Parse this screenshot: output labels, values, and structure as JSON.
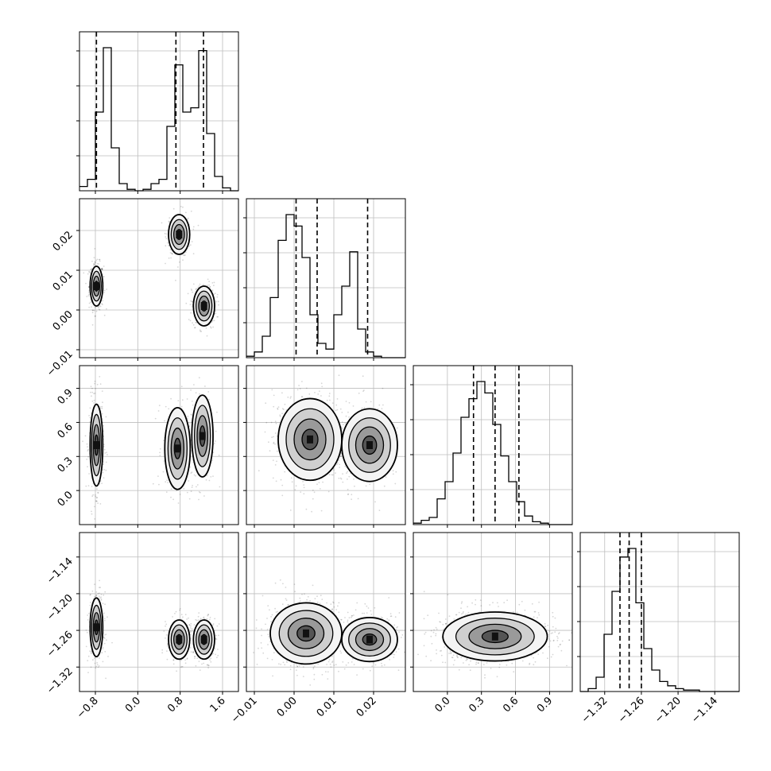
{
  "chart_data": {
    "type": "corner",
    "grid": true,
    "histogram": {
      "bins": 20,
      "style": "step",
      "color": "#000000",
      "quantile_line_style": "dashed"
    },
    "scatter_color": "#000000",
    "contour_color": "#000000",
    "params": [
      {
        "range": [
          -1.1,
          1.9
        ],
        "ticks": [
          -0.8,
          0.0,
          0.8,
          1.6
        ],
        "tick_labels": [
          "−0.8",
          "0.0",
          "0.8",
          "1.6"
        ],
        "quantiles": [
          -0.78,
          0.72,
          1.24
        ],
        "modes": [
          {
            "center": -0.78,
            "sd": 0.06,
            "weight": 1.0
          },
          {
            "center": 0.75,
            "sd": 0.1,
            "weight": 0.6
          },
          {
            "center": 1.2,
            "sd": 0.1,
            "weight": 0.7
          }
        ],
        "hist": [
          0.03,
          0.08,
          0.55,
          1.0,
          0.3,
          0.05,
          0.01,
          0.0,
          0.01,
          0.05,
          0.08,
          0.45,
          0.88,
          0.55,
          0.58,
          0.98,
          0.4,
          0.1,
          0.02,
          0.0
        ]
      },
      {
        "range": [
          -0.012,
          0.028
        ],
        "ticks": [
          -0.01,
          0.0,
          0.01,
          0.02
        ],
        "tick_labels": [
          "−0.01",
          "0.00",
          "0.01",
          "0.02"
        ],
        "quantiles": [
          0.0005,
          0.0058,
          0.0185
        ],
        "hist": [
          0.01,
          0.04,
          0.15,
          0.42,
          0.82,
          1.0,
          0.92,
          0.7,
          0.3,
          0.1,
          0.06,
          0.3,
          0.5,
          0.74,
          0.2,
          0.04,
          0.01,
          0.0,
          0.0,
          0.0
        ]
      },
      {
        "range": [
          -0.3,
          1.1
        ],
        "ticks": [
          0.0,
          0.3,
          0.6,
          0.9
        ],
        "tick_labels": [
          "0.0",
          "0.3",
          "0.6",
          "0.9"
        ],
        "quantiles": [
          0.23,
          0.42,
          0.63
        ],
        "hist": [
          0.01,
          0.03,
          0.05,
          0.18,
          0.3,
          0.5,
          0.75,
          0.88,
          1.0,
          0.92,
          0.7,
          0.48,
          0.3,
          0.16,
          0.06,
          0.02,
          0.01,
          0.0,
          0.0,
          0.0
        ]
      },
      {
        "range": [
          -1.36,
          -1.1
        ],
        "ticks": [
          -1.32,
          -1.26,
          -1.2,
          -1.14
        ],
        "tick_labels": [
          "−1.32",
          "−1.26",
          "−1.20",
          "−1.14"
        ],
        "quantiles": [
          -1.295,
          -1.28,
          -1.26
        ],
        "hist": [
          0.0,
          0.02,
          0.1,
          0.4,
          0.7,
          0.94,
          1.0,
          0.62,
          0.3,
          0.15,
          0.07,
          0.04,
          0.02,
          0.01,
          0.01,
          0.0,
          0.0,
          0.0,
          0.0,
          0.0
        ]
      }
    ],
    "joint_clusters": [
      {
        "row": 1,
        "col": 0,
        "clusters": [
          {
            "center": [
              -0.78,
              0.006
            ],
            "spread": [
              0.06,
              0.0025
            ],
            "weight": 1.0
          },
          {
            "center": [
              0.78,
              0.019
            ],
            "spread": [
              0.1,
              0.0025
            ],
            "weight": 0.6
          },
          {
            "center": [
              1.25,
              0.001
            ],
            "spread": [
              0.1,
              0.0025
            ],
            "weight": 0.7
          }
        ]
      },
      {
        "row": 2,
        "col": 0,
        "clusters": [
          {
            "center": [
              -0.78,
              0.4
            ],
            "spread": [
              0.06,
              0.18
            ],
            "weight": 1.0
          },
          {
            "center": [
              0.75,
              0.37
            ],
            "spread": [
              0.12,
              0.18
            ],
            "weight": 0.6
          },
          {
            "center": [
              1.22,
              0.48
            ],
            "spread": [
              0.1,
              0.18
            ],
            "weight": 0.7
          }
        ]
      },
      {
        "row": 2,
        "col": 1,
        "clusters": [
          {
            "center": [
              0.004,
              0.45
            ],
            "spread": [
              0.004,
              0.18
            ],
            "weight": 1.5
          },
          {
            "center": [
              0.019,
              0.4
            ],
            "spread": [
              0.0035,
              0.16
            ],
            "weight": 0.8
          }
        ]
      },
      {
        "row": 3,
        "col": 0,
        "clusters": [
          {
            "center": [
              -0.78,
              -1.255
            ],
            "spread": [
              0.06,
              0.024
            ],
            "weight": 1.0
          },
          {
            "center": [
              0.78,
              -1.275
            ],
            "spread": [
              0.1,
              0.016
            ],
            "weight": 0.6
          },
          {
            "center": [
              1.25,
              -1.275
            ],
            "spread": [
              0.1,
              0.016
            ],
            "weight": 0.7
          }
        ]
      },
      {
        "row": 3,
        "col": 1,
        "clusters": [
          {
            "center": [
              0.003,
              -1.265
            ],
            "spread": [
              0.0045,
              0.025
            ],
            "weight": 1.5
          },
          {
            "center": [
              0.019,
              -1.275
            ],
            "spread": [
              0.0035,
              0.018
            ],
            "weight": 0.8
          }
        ]
      },
      {
        "row": 3,
        "col": 2,
        "clusters": [
          {
            "center": [
              0.42,
              -1.27
            ],
            "spread": [
              0.23,
              0.02
            ],
            "weight": 2.0
          }
        ]
      }
    ]
  }
}
